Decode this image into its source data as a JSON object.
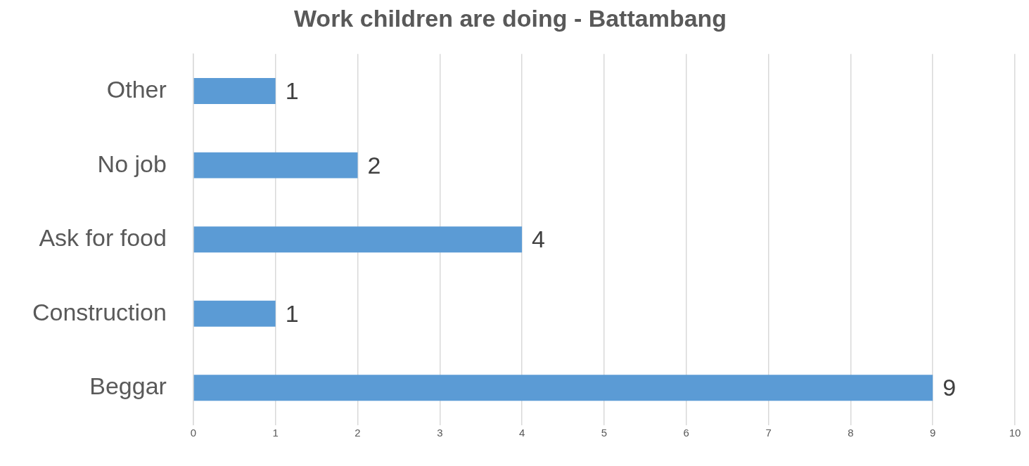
{
  "chart_data": {
    "type": "bar",
    "orientation": "horizontal",
    "title": "Work children are doing - Battambang",
    "categories": [
      "Other",
      "No job",
      "Ask for food",
      "Construction",
      "Beggar"
    ],
    "values": [
      1,
      2,
      4,
      1,
      9
    ],
    "color": "#5b9bd5",
    "xlim": [
      0,
      10
    ],
    "xticks": [
      0,
      1,
      2,
      3,
      4,
      5,
      6,
      7,
      8,
      9,
      10
    ],
    "grid": "x",
    "data_labels": true
  }
}
